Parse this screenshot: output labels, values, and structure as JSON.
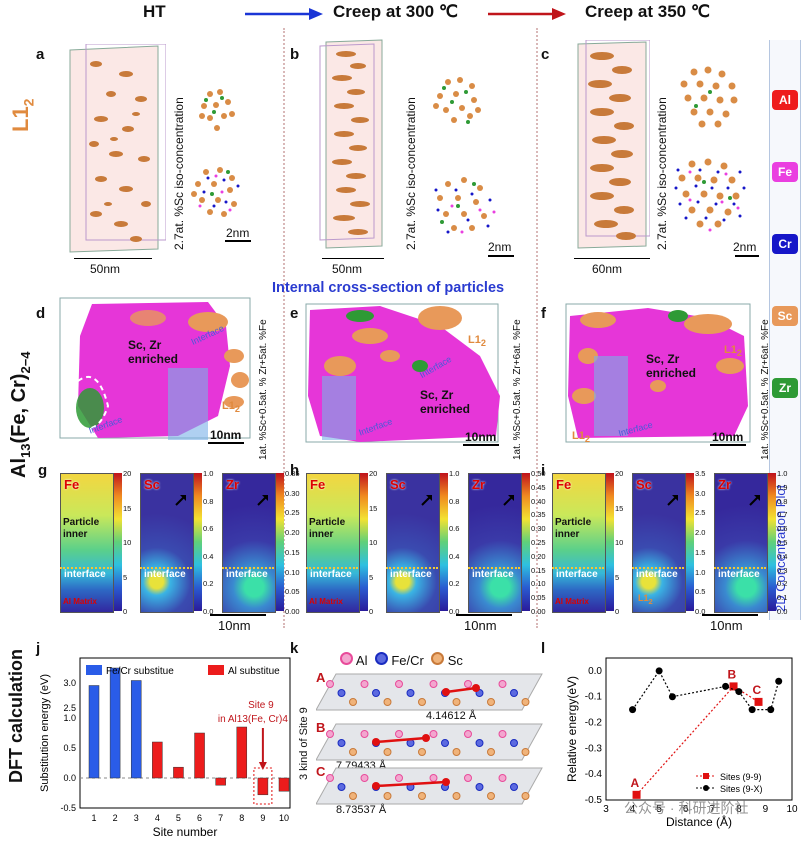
{
  "header": {
    "col1": "HT",
    "col2": "Creep at 300 ℃",
    "col3": "Creep at 350 ℃",
    "arrow1_color": "#1a35d6",
    "arrow2_color": "#c0151b"
  },
  "row_labels": {
    "l12": "L1",
    "l12_sub": "2",
    "al13_main": "Al",
    "al13_sub": "13",
    "al13_rest": "(Fe, Cr)",
    "al13_sub2": "2−4",
    "dft": "DFT calculation"
  },
  "panels": {
    "a": {
      "letter": "a",
      "iso": "2.7at. %Sc iso-concentration",
      "scale_big": "50nm",
      "scale_small": "2nm"
    },
    "b": {
      "letter": "b",
      "iso": "2.7at. %Sc iso-concentration",
      "scale_big": "50nm",
      "scale_small": "2nm"
    },
    "c": {
      "letter": "c",
      "iso": "2.7at. %Sc iso-concentration",
      "scale_big": "60nm",
      "scale_small": "2nm"
    },
    "cross_section_title": "Internal cross-section of particles",
    "d": {
      "letter": "d",
      "iso": "1at. %Sc+0.5at. % Zr+5at. %Fe",
      "enriched": "Sc, Zr enriched",
      "interface1": "Interface",
      "interface2": "Interface",
      "l12": "L1",
      "scale": "10nm"
    },
    "e": {
      "letter": "e",
      "iso": "1at. %Sc+0.5at. % Zr+6at. %Fe",
      "enriched": "Sc, Zr enriched",
      "interface1": "Interface",
      "interface2": "Interface",
      "l12": "L1",
      "scale": "10nm"
    },
    "f": {
      "letter": "f",
      "iso": "1at. %Sc+0.5at. % Zr+6at. %Fe",
      "enriched": "Sc, Zr enriched",
      "interface1": "Interface",
      "l12a": "L1",
      "l12b": "L1",
      "scale": "10nm"
    },
    "g": {
      "letter": "g",
      "fe": "Fe",
      "sc": "Sc",
      "zr": "Zr",
      "particle_inner": "Particle inner",
      "interface": "interface",
      "al_matrix": "Al Matrix",
      "ticks_a": [
        "20",
        "15",
        "10",
        "5",
        "0"
      ],
      "ticks_b": [
        "1.0",
        "0.8",
        "0.6",
        "0.4",
        "0.2",
        "0.0"
      ],
      "ticks_c": [
        "0.35",
        "0.30",
        "0.25",
        "0.20",
        "0.15",
        "0.10",
        "0.05",
        "0.00"
      ],
      "scale": "10nm"
    },
    "h": {
      "letter": "h",
      "fe": "Fe",
      "sc": "Sc",
      "zr": "Zr",
      "particle_inner": "Particle inner",
      "interface": "interface",
      "al_matrix": "Al Matrix",
      "ticks_a": [
        "20",
        "15",
        "10",
        "5",
        "0"
      ],
      "ticks_b": [
        "1.0",
        "0.8",
        "0.6",
        "0.4",
        "0.2",
        "0.0"
      ],
      "ticks_c": [
        "0.50",
        "0.45",
        "0.40",
        "0.35",
        "0.30",
        "0.25",
        "0.20",
        "0.15",
        "0.10",
        "0.05",
        "0.00"
      ],
      "scale": "10nm"
    },
    "i": {
      "letter": "i",
      "fe": "Fe",
      "sc": "Sc",
      "zr": "Zr",
      "particle_inner": "Particle inner",
      "interface": "interface",
      "al_matrix": "Al Matrix",
      "l12": "L1",
      "ticks_a": [
        "20",
        "15",
        "10",
        "5",
        "0"
      ],
      "ticks_b": [
        "3.5",
        "3.0",
        "2.5",
        "2.0",
        "1.5",
        "1.0",
        "0.5",
        "0.0"
      ],
      "ticks_c": [
        "1.0",
        "0.9",
        "0.8",
        "0.7",
        "0.6",
        "0.5",
        "0.4",
        "0.3",
        "0.2",
        "0.1",
        "0.0"
      ],
      "scale": "10nm"
    },
    "concentration_plot": "2D Concentration Plot"
  },
  "legend_elements": [
    {
      "label": "Al",
      "color": "#ee1c1c"
    },
    {
      "label": "Fe",
      "color": "#ea3fe0"
    },
    {
      "label": "Cr",
      "color": "#1616c8"
    },
    {
      "label": "Sc",
      "color": "#e8995a"
    },
    {
      "label": "Zr",
      "color": "#2e9a35"
    }
  ],
  "panel_k": {
    "letter": "k",
    "legend": [
      "Al",
      "Fe/Cr",
      "Sc"
    ],
    "ylabel": "3 kind of Site 9",
    "rows": [
      {
        "label": "A",
        "distance": "4.14612 Å"
      },
      {
        "label": "B",
        "distance": "7.79433 Å"
      },
      {
        "label": "C",
        "distance": "8.73537 Å"
      }
    ]
  },
  "watermark": "公众号 · 科研进阶社",
  "chart_data": [
    {
      "id": "j",
      "type": "bar",
      "title": "",
      "xlabel": "Site number",
      "ylabel": "Substitution energy (eV)",
      "categories": [
        "1",
        "2",
        "3",
        "4",
        "5",
        "6",
        "7",
        "8",
        "9",
        "10"
      ],
      "series": [
        {
          "name": "Fe/Cr substitue",
          "color": "#2a5ce8",
          "values": [
            2.95,
            3.3,
            3.05,
            null,
            null,
            null,
            null,
            null,
            null,
            null
          ]
        },
        {
          "name": "Al substitue",
          "color": "#ec1c1c",
          "values": [
            null,
            null,
            null,
            0.6,
            0.18,
            0.75,
            -0.12,
            0.85,
            -0.28,
            -0.22
          ]
        }
      ],
      "yticks": [
        "3.0",
        "2.5",
        "1.0",
        "0.5",
        "0.0",
        "-0.5"
      ],
      "annotation": "Site 9",
      "annotation2": "in Al13(Fe, Cr)4",
      "ylim": [
        -0.5,
        3.5
      ]
    },
    {
      "id": "l",
      "type": "line",
      "title": "",
      "xlabel": "Distance (Å)",
      "ylabel": "Relative energy(eV)",
      "series": [
        {
          "name": "Sites (9-9)",
          "color": "#e01010",
          "points": [
            [
              4.15,
              -0.48
            ],
            [
              7.8,
              -0.06
            ],
            [
              8.74,
              -0.12
            ]
          ],
          "point_labels": [
            "A",
            "B",
            "C"
          ]
        },
        {
          "name": "Sites (9-X)",
          "color": "#000000",
          "points": [
            [
              4.0,
              -0.15
            ],
            [
              5.0,
              0.0
            ],
            [
              5.5,
              -0.1
            ],
            [
              7.5,
              -0.06
            ],
            [
              8.0,
              -0.08
            ],
            [
              8.5,
              -0.15
            ],
            [
              9.2,
              -0.15
            ],
            [
              9.5,
              -0.04
            ]
          ]
        }
      ],
      "xticks": [
        "3",
        "4",
        "5",
        "6",
        "7",
        "8",
        "9",
        "10"
      ],
      "yticks": [
        "0.0",
        "-0.1",
        "-0.2",
        "-0.3",
        "-0.4",
        "-0.5"
      ],
      "xlim": [
        3,
        10
      ],
      "ylim": [
        -0.5,
        0.05
      ]
    }
  ]
}
